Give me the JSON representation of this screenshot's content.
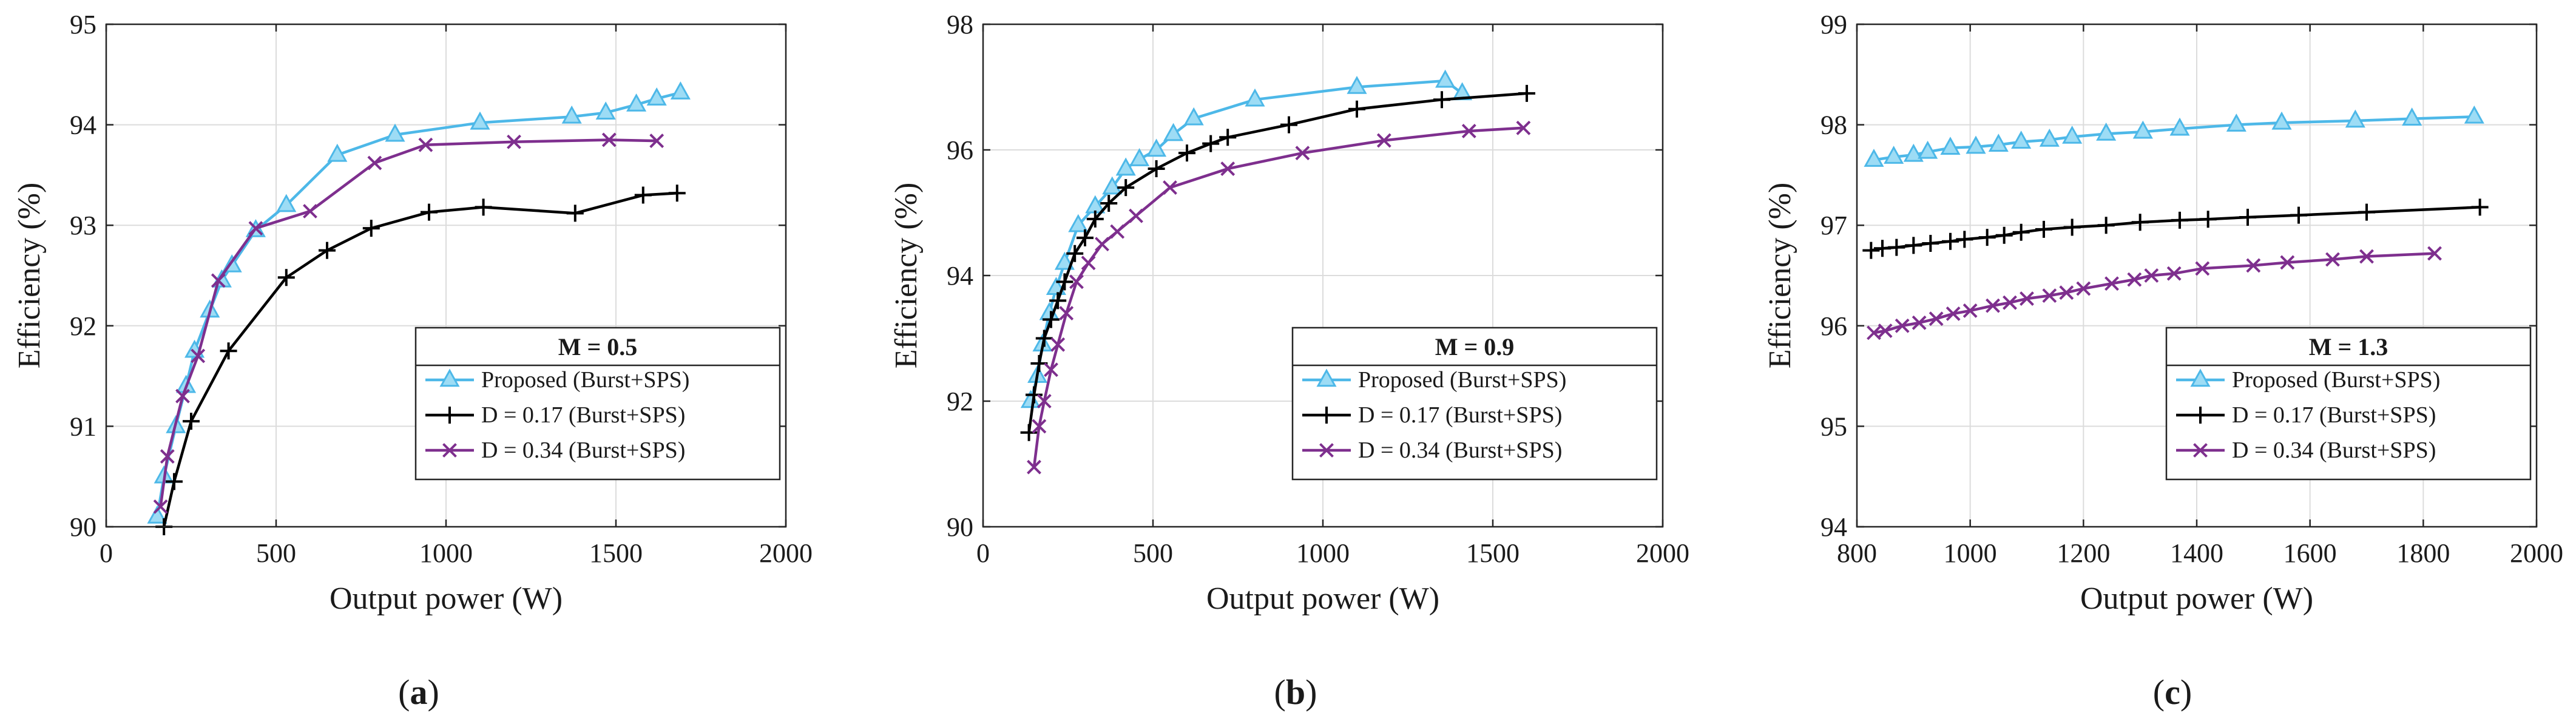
{
  "chart_data": [
    {
      "type": "line",
      "panel": "a",
      "caption": "(a)",
      "caption_letter": "a",
      "title": "M = 0.5",
      "xlabel": "Output power (W)",
      "ylabel": "Efficiency (%)",
      "xlim": [
        0,
        2000
      ],
      "ylim": [
        90,
        95
      ],
      "xticks": [
        0,
        500,
        1000,
        1500,
        2000
      ],
      "yticks": [
        90,
        91,
        92,
        93,
        94,
        95
      ],
      "grid": true,
      "legend_position": "bottom-right",
      "series": [
        {
          "name": "Proposed (Burst+SPS)",
          "color": "#4db8e8",
          "marker": "triangle",
          "x": [
            150,
            170,
            205,
            235,
            260,
            305,
            340,
            370,
            440,
            530,
            680,
            850,
            1100,
            1370,
            1470,
            1560,
            1620,
            1690
          ],
          "y": [
            90.1,
            90.5,
            91.0,
            91.4,
            91.75,
            92.15,
            92.45,
            92.6,
            92.95,
            93.2,
            93.7,
            93.9,
            94.02,
            94.08,
            94.12,
            94.2,
            94.26,
            94.32
          ]
        },
        {
          "name": "D = 0.17 (Burst+SPS)",
          "color": "#000000",
          "marker": "plus",
          "x": [
            170,
            200,
            250,
            360,
            530,
            650,
            780,
            950,
            1110,
            1380,
            1580,
            1680
          ],
          "y": [
            90.0,
            90.45,
            91.05,
            91.75,
            92.48,
            92.75,
            92.97,
            93.13,
            93.18,
            93.12,
            93.3,
            93.32
          ]
        },
        {
          "name": "D = 0.34 (Burst+SPS)",
          "color": "#7e2f8e",
          "marker": "x",
          "x": [
            160,
            180,
            225,
            270,
            330,
            440,
            600,
            790,
            940,
            1200,
            1480,
            1620
          ],
          "y": [
            90.2,
            90.7,
            91.3,
            91.7,
            92.45,
            92.97,
            93.14,
            93.62,
            93.8,
            93.83,
            93.85,
            93.84
          ]
        }
      ]
    },
    {
      "type": "line",
      "panel": "b",
      "caption": "(b)",
      "caption_letter": "b",
      "title": "M = 0.9",
      "xlabel": "Output power (W)",
      "ylabel": "Efficiency (%)",
      "xlim": [
        0,
        2000
      ],
      "ylim": [
        90,
        98
      ],
      "xticks": [
        0,
        500,
        1000,
        1500,
        2000
      ],
      "yticks": [
        90,
        92,
        94,
        96,
        98
      ],
      "grid": true,
      "legend_position": "bottom-right",
      "series": [
        {
          "name": "Proposed (Burst+SPS)",
          "color": "#4db8e8",
          "marker": "triangle",
          "x": [
            140,
            160,
            175,
            195,
            215,
            240,
            280,
            330,
            380,
            420,
            460,
            510,
            560,
            620,
            800,
            1100,
            1360,
            1410
          ],
          "y": [
            92.0,
            92.4,
            92.9,
            93.4,
            93.8,
            94.2,
            94.8,
            95.1,
            95.4,
            95.7,
            95.85,
            96.0,
            96.25,
            96.5,
            96.8,
            97.0,
            97.1,
            96.9
          ]
        },
        {
          "name": "D = 0.17 (Burst+SPS)",
          "color": "#000000",
          "marker": "plus",
          "x": [
            135,
            150,
            165,
            180,
            200,
            220,
            240,
            270,
            300,
            330,
            370,
            420,
            510,
            600,
            670,
            720,
            900,
            1100,
            1350,
            1600
          ],
          "y": [
            91.5,
            92.1,
            92.6,
            93.0,
            93.3,
            93.6,
            93.9,
            94.35,
            94.6,
            94.9,
            95.15,
            95.4,
            95.7,
            95.95,
            96.1,
            96.2,
            96.4,
            96.65,
            96.8,
            96.9
          ]
        },
        {
          "name": "D = 0.34 (Burst+SPS)",
          "color": "#7e2f8e",
          "marker": "x",
          "x": [
            150,
            165,
            180,
            200,
            220,
            245,
            275,
            310,
            350,
            395,
            450,
            550,
            720,
            940,
            1180,
            1430,
            1590
          ],
          "y": [
            90.95,
            91.6,
            92.0,
            92.5,
            92.9,
            93.4,
            93.9,
            94.2,
            94.5,
            94.7,
            94.95,
            95.4,
            95.7,
            95.95,
            96.15,
            96.3,
            96.35
          ]
        }
      ]
    },
    {
      "type": "line",
      "panel": "c",
      "caption": "(c)",
      "caption_letter": "c",
      "title": "M = 1.3",
      "xlabel": "Output power (W)",
      "ylabel": "Efficiency (%)",
      "xlim": [
        800,
        2000
      ],
      "ylim": [
        94,
        99
      ],
      "xticks": [
        800,
        1000,
        1200,
        1400,
        1600,
        1800,
        2000
      ],
      "yticks": [
        94,
        95,
        96,
        97,
        98,
        99
      ],
      "grid": true,
      "legend_position": "bottom-right",
      "series": [
        {
          "name": "Proposed (Burst+SPS)",
          "color": "#4db8e8",
          "marker": "triangle",
          "x": [
            830,
            865,
            900,
            925,
            965,
            1010,
            1050,
            1090,
            1140,
            1180,
            1240,
            1305,
            1370,
            1470,
            1550,
            1680,
            1780,
            1890
          ],
          "y": [
            97.65,
            97.68,
            97.7,
            97.73,
            97.77,
            97.78,
            97.8,
            97.83,
            97.85,
            97.88,
            97.91,
            97.93,
            97.96,
            98.0,
            98.02,
            98.04,
            98.06,
            98.08
          ]
        },
        {
          "name": "D = 0.17 (Burst+SPS)",
          "color": "#000000",
          "marker": "plus",
          "x": [
            825,
            845,
            870,
            900,
            930,
            965,
            990,
            1030,
            1060,
            1090,
            1130,
            1180,
            1240,
            1300,
            1370,
            1420,
            1490,
            1580,
            1700,
            1900
          ],
          "y": [
            96.75,
            96.77,
            96.78,
            96.8,
            96.82,
            96.84,
            96.86,
            96.88,
            96.9,
            96.93,
            96.96,
            96.98,
            97.0,
            97.03,
            97.05,
            97.06,
            97.08,
            97.1,
            97.13,
            97.18
          ]
        },
        {
          "name": "D = 0.34 (Burst+SPS)",
          "color": "#7e2f8e",
          "marker": "x",
          "x": [
            830,
            850,
            880,
            910,
            940,
            970,
            1000,
            1040,
            1070,
            1100,
            1140,
            1170,
            1200,
            1250,
            1290,
            1320,
            1360,
            1410,
            1500,
            1560,
            1640,
            1700,
            1820
          ],
          "y": [
            95.93,
            95.95,
            96.0,
            96.03,
            96.07,
            96.12,
            96.15,
            96.2,
            96.23,
            96.27,
            96.3,
            96.33,
            96.37,
            96.42,
            96.46,
            96.5,
            96.52,
            96.57,
            96.6,
            96.63,
            96.66,
            96.69,
            96.72
          ]
        }
      ]
    }
  ]
}
